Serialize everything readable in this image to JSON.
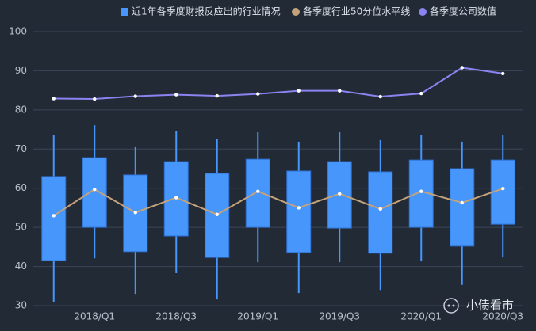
{
  "chart_data": {
    "type": "box",
    "categories": [
      null,
      "2018/Q1",
      null,
      "2018/Q3",
      null,
      "2019/Q1",
      null,
      "2019/Q3",
      null,
      "2020/Q1",
      null,
      "2020/Q3"
    ],
    "ylim": [
      30,
      100
    ],
    "yticks": [
      30,
      40,
      50,
      60,
      70,
      80,
      90,
      100
    ],
    "grid": true,
    "series": [
      {
        "name": "近1年各季度财报反应出的行业情况",
        "type": "box",
        "color": "#4696fb",
        "low": [
          31.0,
          42.1,
          33.0,
          38.3,
          31.6,
          41.1,
          33.2,
          41.1,
          34.0,
          41.3,
          35.3,
          42.3
        ],
        "q1": [
          41.5,
          50.0,
          43.8,
          47.8,
          42.3,
          50.0,
          43.6,
          49.8,
          43.4,
          50.0,
          45.2,
          50.8
        ],
        "q3": [
          63.0,
          67.8,
          63.4,
          66.8,
          63.8,
          67.4,
          64.4,
          66.8,
          64.2,
          67.2,
          65.0,
          67.2
        ],
        "high": [
          73.5,
          76.1,
          70.5,
          74.5,
          72.7,
          74.3,
          71.9,
          74.3,
          72.3,
          73.5,
          71.9,
          73.7
        ]
      },
      {
        "name": "各季度行业50分位水平线",
        "type": "line",
        "color": "#c4a27a",
        "values": [
          53.0,
          59.7,
          53.8,
          57.6,
          53.3,
          59.2,
          55.0,
          58.6,
          54.7,
          59.2,
          56.3,
          59.9
        ]
      },
      {
        "name": "各季度公司数值",
        "type": "line",
        "color": "#8b83f0",
        "values": [
          82.9,
          82.8,
          83.5,
          83.9,
          83.6,
          84.1,
          84.9,
          84.9,
          83.4,
          84.2,
          90.8,
          89.3
        ]
      }
    ]
  },
  "watermark": "小债看市"
}
